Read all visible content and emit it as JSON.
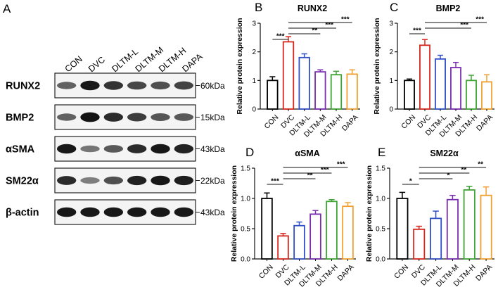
{
  "panel_letters": [
    "A",
    "B",
    "C",
    "D",
    "E"
  ],
  "western_blot": {
    "lanes": [
      "CON",
      "DVC",
      "DLTM-L",
      "DLTM-M",
      "DLTM-H",
      "DAPA"
    ],
    "rows": [
      {
        "protein": "RUNX2",
        "size": "60kDa",
        "intensity": [
          0.55,
          0.95,
          0.8,
          0.7,
          0.65,
          0.72
        ]
      },
      {
        "protein": "BMP2",
        "size": "15kDa",
        "intensity": [
          0.55,
          0.98,
          0.85,
          0.75,
          0.62,
          0.6
        ]
      },
      {
        "protein": "αSMA",
        "size": "43kDa",
        "intensity": [
          0.95,
          0.45,
          0.6,
          0.85,
          0.95,
          0.9
        ]
      },
      {
        "protein": "SM22α",
        "size": "22kDa",
        "intensity": [
          0.85,
          0.4,
          0.65,
          0.9,
          0.95,
          0.92
        ]
      },
      {
        "protein": "β-actin",
        "size": "43kDa",
        "intensity": [
          0.95,
          0.95,
          0.95,
          0.95,
          0.95,
          0.95
        ]
      }
    ]
  },
  "chart_data": [
    {
      "panel": "B",
      "type": "bar",
      "title": "RUNX2",
      "ylabel": "Relative protein expression",
      "categories": [
        "CON",
        "DVC",
        "DLTM-L",
        "DLTM-M",
        "DLTM-H",
        "DAPA"
      ],
      "values": [
        1.0,
        2.35,
        1.8,
        1.3,
        1.2,
        1.22
      ],
      "errors": [
        0.13,
        0.18,
        0.13,
        0.07,
        0.12,
        0.15
      ],
      "colors": [
        "#000000",
        "#d9261c",
        "#2f4fc7",
        "#7a2db0",
        "#3fa535",
        "#f0a030"
      ],
      "ylim": [
        0,
        3
      ],
      "yticks": [
        "0",
        "1",
        "2",
        "3"
      ],
      "significance": [
        {
          "from": 0,
          "to": 1,
          "label": "***"
        },
        {
          "from": 1,
          "to": 3,
          "label": "**"
        },
        {
          "from": 1,
          "to": 4,
          "label": "***"
        },
        {
          "from": 1,
          "to": 5,
          "label": "***"
        }
      ]
    },
    {
      "panel": "C",
      "type": "bar",
      "title": "BMP2",
      "ylabel": "Relative protein expression",
      "categories": [
        "CON",
        "DVC",
        "DLTM-L",
        "DLTM-M",
        "DLTM-H",
        "DAPA"
      ],
      "values": [
        1.0,
        2.23,
        1.75,
        1.45,
        1.0,
        0.95
      ],
      "errors": [
        0.05,
        0.2,
        0.13,
        0.18,
        0.18,
        0.25
      ],
      "colors": [
        "#000000",
        "#d9261c",
        "#2f4fc7",
        "#7a2db0",
        "#3fa535",
        "#f0a030"
      ],
      "ylim": [
        0,
        3
      ],
      "yticks": [
        "0",
        "1",
        "2",
        "3"
      ],
      "significance": [
        {
          "from": 0,
          "to": 1,
          "label": "***"
        },
        {
          "from": 1,
          "to": 4,
          "label": "***"
        },
        {
          "from": 1,
          "to": 5,
          "label": "***"
        }
      ]
    },
    {
      "panel": "D",
      "type": "bar",
      "title": "αSMA",
      "ylabel": "Relative protein expression",
      "categories": [
        "CON",
        "DVC",
        "DLTM-L",
        "DLTM-M",
        "DLTM-H",
        "DAPA"
      ],
      "values": [
        1.0,
        0.38,
        0.55,
        0.74,
        0.95,
        0.87
      ],
      "errors": [
        0.09,
        0.04,
        0.06,
        0.06,
        0.03,
        0.06
      ],
      "colors": [
        "#000000",
        "#d9261c",
        "#2f4fc7",
        "#7a2db0",
        "#3fa535",
        "#f0a030"
      ],
      "ylim": [
        0,
        1.5
      ],
      "yticks": [
        "0.0",
        "0.5",
        "1.0",
        "1.5"
      ],
      "significance": [
        {
          "from": 0,
          "to": 1,
          "label": "***"
        },
        {
          "from": 1,
          "to": 3,
          "label": "**"
        },
        {
          "from": 1,
          "to": 4,
          "label": "***"
        },
        {
          "from": 1,
          "to": 5,
          "label": "***"
        }
      ]
    },
    {
      "panel": "E",
      "type": "bar",
      "title": "SM22α",
      "ylabel": "Relative protein expression",
      "categories": [
        "CON",
        "DVC",
        "DLTM-L",
        "DLTM-M",
        "DLTM-H",
        "DAPA"
      ],
      "values": [
        1.0,
        0.49,
        0.67,
        0.98,
        1.14,
        1.05
      ],
      "errors": [
        0.1,
        0.05,
        0.12,
        0.07,
        0.06,
        0.14
      ],
      "colors": [
        "#000000",
        "#d9261c",
        "#2f4fc7",
        "#7a2db0",
        "#3fa535",
        "#f0a030"
      ],
      "ylim": [
        0,
        1.5
      ],
      "yticks": [
        "0.0",
        "0.5",
        "1.0",
        "1.5"
      ],
      "significance": [
        {
          "from": 0,
          "to": 1,
          "label": "*"
        },
        {
          "from": 1,
          "to": 3,
          "label": "*"
        },
        {
          "from": 1,
          "to": 4,
          "label": "**"
        },
        {
          "from": 1,
          "to": 5,
          "label": "**"
        }
      ]
    }
  ]
}
